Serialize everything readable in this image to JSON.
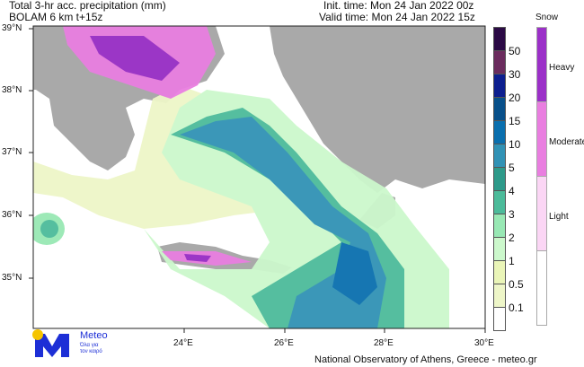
{
  "header": {
    "title": "Total 3-hr acc. precipitation (mm)",
    "model": "BOLAM 6 km t+15z",
    "init_time": "Init. time: Mon 24 Jan 2022 00z",
    "valid_time": "Valid time: Mon 24 Jan 2022 15z"
  },
  "map": {
    "lon_labels": [
      "24°E",
      "26°E",
      "28°E",
      "30°E"
    ],
    "lat_labels": [
      "39°N",
      "38°N",
      "37°N",
      "36°N",
      "35°N"
    ],
    "land_color": "#a9a9a9",
    "sea_color": "#ffffff"
  },
  "precip_legend": {
    "levels": [
      "50",
      "30",
      "20",
      "15",
      "10",
      "5",
      "4",
      "3",
      "2",
      "1",
      "0.5",
      "0.1"
    ],
    "colors": [
      "#2b0a45",
      "#6b2c5e",
      "#0d1f8f",
      "#08508a",
      "#0a6fae",
      "#3192b5",
      "#2e9a8a",
      "#4cbb9a",
      "#98e8b4",
      "#ccf8cc",
      "#eaf5b8",
      "#eef6c8",
      "#ffffff"
    ]
  },
  "snow_legend": {
    "title": "Snow",
    "labels": [
      "Heavy",
      "Moderate",
      "Light"
    ],
    "colors": [
      "#9b30c8",
      "#e97ee0",
      "#fbd6f5",
      "#ffffff"
    ]
  },
  "logo": {
    "name": "Meteo",
    "tagline_1": "Όλα για",
    "tagline_2": "τον καιρό",
    "brand_color": "#1d2fd6",
    "sun_color": "#f5c400"
  },
  "footer": {
    "credit": "National Observatory of Athens, Greece - meteo.gr"
  }
}
